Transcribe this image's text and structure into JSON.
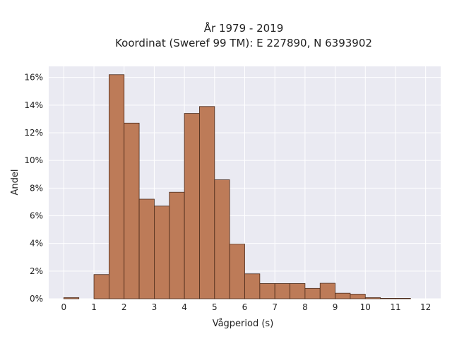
{
  "chart_data": {
    "type": "bar",
    "title_lines": [
      "År 1979 - 2019",
      "Koordinat (Sweref 99 TM): E 227890, N 6393902"
    ],
    "xlabel": "Vågperiod (s)",
    "ylabel": "Andel",
    "xlim": [
      -0.5,
      12.5
    ],
    "ylim": [
      0,
      16.8
    ],
    "x_ticks": [
      0,
      1,
      2,
      3,
      4,
      5,
      6,
      7,
      8,
      9,
      10,
      11,
      12
    ],
    "y_ticks": [
      0,
      2,
      4,
      6,
      8,
      10,
      12,
      14,
      16
    ],
    "y_tick_labels": [
      "0%",
      "2%",
      "4%",
      "6%",
      "8%",
      "10%",
      "12%",
      "14%",
      "16%"
    ],
    "grid": true,
    "bin_width": 0.5,
    "bins": [
      {
        "x0": 0.0,
        "value": 0.08
      },
      {
        "x0": 0.5,
        "value": 0.0
      },
      {
        "x0": 1.0,
        "value": 1.75
      },
      {
        "x0": 1.5,
        "value": 16.2
      },
      {
        "x0": 2.0,
        "value": 12.7
      },
      {
        "x0": 2.5,
        "value": 7.2
      },
      {
        "x0": 3.0,
        "value": 6.7
      },
      {
        "x0": 3.5,
        "value": 7.7
      },
      {
        "x0": 4.0,
        "value": 13.4
      },
      {
        "x0": 4.5,
        "value": 13.9
      },
      {
        "x0": 5.0,
        "value": 8.6
      },
      {
        "x0": 5.5,
        "value": 3.95
      },
      {
        "x0": 6.0,
        "value": 1.8
      },
      {
        "x0": 6.5,
        "value": 1.1
      },
      {
        "x0": 7.0,
        "value": 1.1
      },
      {
        "x0": 7.5,
        "value": 1.1
      },
      {
        "x0": 8.0,
        "value": 0.75
      },
      {
        "x0": 8.5,
        "value": 1.12
      },
      {
        "x0": 9.0,
        "value": 0.4
      },
      {
        "x0": 9.5,
        "value": 0.33
      },
      {
        "x0": 10.0,
        "value": 0.08
      },
      {
        "x0": 10.5,
        "value": 0.03
      },
      {
        "x0": 11.0,
        "value": 0.03
      }
    ],
    "colors": {
      "bar_fill": "#bd7b58",
      "bar_edge": "#4a2a1a",
      "plot_background": "#eaeaf2",
      "grid": "#ffffff"
    }
  }
}
